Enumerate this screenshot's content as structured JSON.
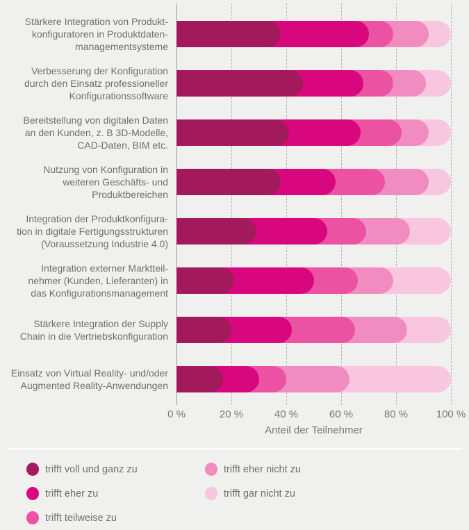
{
  "background": "#f0f0ef",
  "axis": {
    "xlabel": "Anteil der Teilnehmer",
    "ticks": [
      "0 %",
      "20 %",
      "40 %",
      "60 %",
      "80 %",
      "100 %"
    ]
  },
  "chart_data": {
    "type": "bar",
    "orientation": "horizontal",
    "stacked": true,
    "unit": "percent",
    "xlabel": "Anteil der Teilnehmer",
    "xlim": [
      0,
      100
    ],
    "x_ticks": [
      "0 %",
      "20 %",
      "40 %",
      "60 %",
      "80 %",
      "100 %"
    ],
    "grid": "dashed-vertical",
    "legend_position": "bottom",
    "categories": [
      "Stärkere Integration von Produktkonfiguratoren in Produktdatenmanagementsysteme",
      "Verbesserung der Konfiguration durch den Einsatz professioneller Konfigurationssoftware",
      "Bereitstellung von digitalen Daten an den Kunden, z. B 3D-Modelle, CAD-Daten, BIM etc.",
      "Nutzung von Konfiguration in weiteren Geschäfts- und Produktbereichen",
      "Integration der Produktkonfiguration in digitale Fertigungsstrukturen (Voraussetzung Industrie 4.0)",
      "Integration externer Marktteilnehmer (Kunden, Lieferanten) in das Konfigurationsmanagement",
      "Stärkere Integration der Supply Chain in die Vertriebskonfiguration",
      "Einsatz von Virtual Reality- und/oder Augmented Reality-Anwendungen"
    ],
    "categories_lines": [
      [
        "Stärkere Integration von Produkt-",
        "konfiguratoren in Produktdaten-",
        "managementsysteme"
      ],
      [
        "Verbesserung der Konfiguration",
        "durch den Einsatz professioneller",
        "Konfigurationssoftware"
      ],
      [
        "Bereitstellung von digitalen Daten",
        "an den Kunden, z. B 3D-Modelle,",
        "CAD-Daten, BIM etc."
      ],
      [
        "Nutzung von Konfiguration in",
        "weiteren Geschäfts- und",
        "Produktbereichen"
      ],
      [
        "Integration der Produktkonfigura-",
        "tion in digitale Fertigungsstrukturen",
        "(Voraussetzung Industrie 4.0)"
      ],
      [
        "Integration externer Marktteil-",
        "nehmer (Kunden, Lieferanten) in",
        "das Konfigurationsmanagement"
      ],
      [
        "Stärkere Integration der Supply",
        "Chain in die Vertriebskonfiguration"
      ],
      [
        "Einsatz von Virtual Reality- und/oder",
        "Augmented Reality-Anwendungen"
      ]
    ],
    "series": [
      {
        "name": "trifft voll und ganz zu",
        "color": "#a21a5c",
        "values": [
          38,
          46,
          41,
          38,
          29,
          21,
          20,
          17
        ]
      },
      {
        "name": "trifft eher zu",
        "color": "#d9077d",
        "values": [
          32,
          22,
          26,
          20,
          26,
          29,
          22,
          13
        ]
      },
      {
        "name": "trifft teilweise zu",
        "color": "#ec52a2",
        "values": [
          9,
          11,
          15,
          18,
          14,
          16,
          23,
          10
        ]
      },
      {
        "name": "trifft eher nicht zu",
        "color": "#f18cc0",
        "values": [
          13,
          12,
          10,
          16,
          16,
          13,
          19,
          23
        ]
      },
      {
        "name": "trifft gar nicht zu",
        "color": "#f9c6df",
        "values": [
          8,
          9,
          8,
          8,
          15,
          21,
          16,
          37
        ]
      }
    ]
  },
  "legend": {
    "items": [
      {
        "label": "trifft voll und ganz zu",
        "color": "#a21a5c"
      },
      {
        "label": "trifft eher zu",
        "color": "#d9077d"
      },
      {
        "label": "trifft teilweise zu",
        "color": "#ec52a2"
      },
      {
        "label": "trifft eher nicht zu",
        "color": "#f18cc0"
      },
      {
        "label": "trifft gar nicht zu",
        "color": "#f9c6df"
      }
    ]
  },
  "styles": {
    "gridline_color": "#b5b5b5",
    "axis_line_color": "#9b9b9b",
    "text_color": "#6f6f6f",
    "separator_color": "#ffffff"
  }
}
